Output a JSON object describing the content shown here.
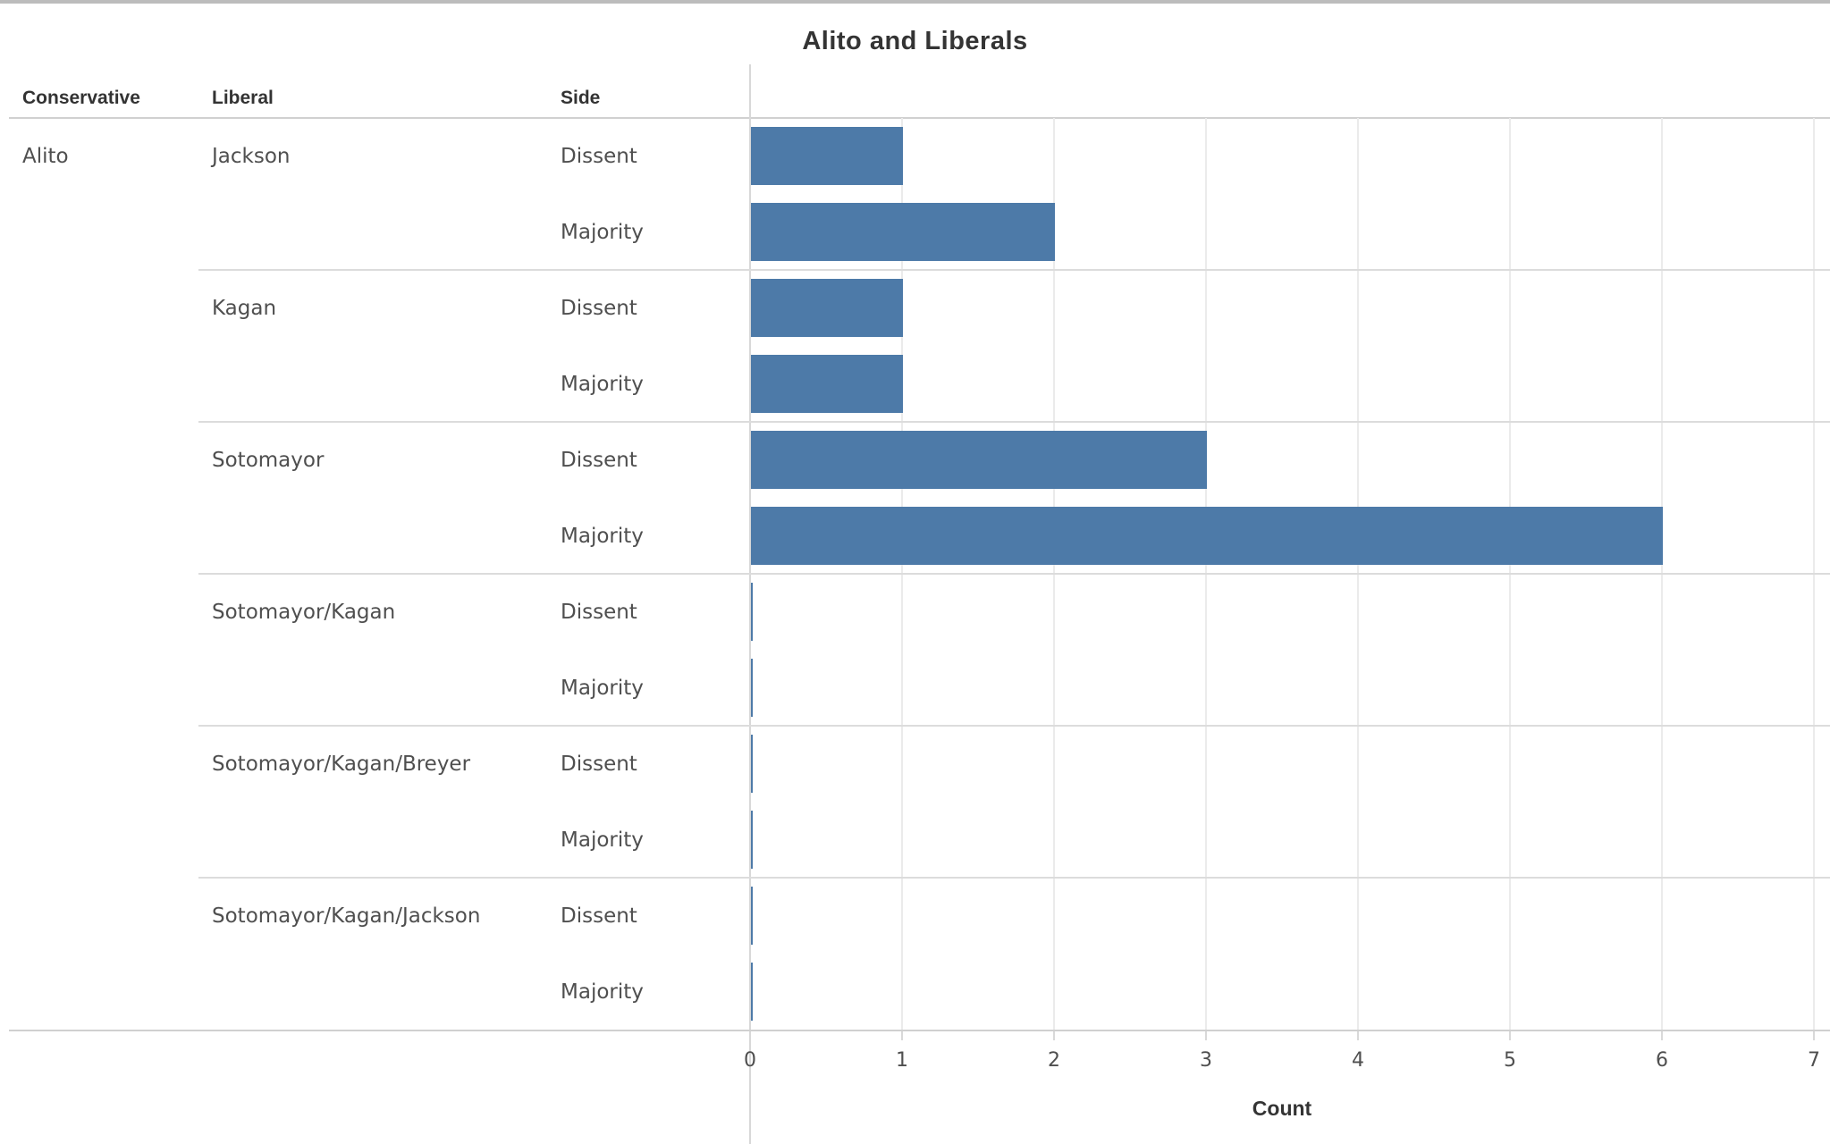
{
  "title": "Alito and Liberals",
  "chart_data": {
    "type": "bar",
    "orientation": "horizontal",
    "title": "Alito and Liberals",
    "xlabel": "Count",
    "xlim": [
      0,
      7
    ],
    "x_ticks": [
      0,
      1,
      2,
      3,
      4,
      5,
      6,
      7
    ],
    "grid": "vertical-on",
    "bar_color": "#4d7aa8",
    "row_headers": [
      "Conservative",
      "Liberal",
      "Side"
    ],
    "conservative": "Alito",
    "groups": [
      {
        "liberal": "Jackson",
        "rows": [
          {
            "side": "Dissent",
            "count": 1
          },
          {
            "side": "Majority",
            "count": 2
          }
        ]
      },
      {
        "liberal": "Kagan",
        "rows": [
          {
            "side": "Dissent",
            "count": 1
          },
          {
            "side": "Majority",
            "count": 1
          }
        ]
      },
      {
        "liberal": "Sotomayor",
        "rows": [
          {
            "side": "Dissent",
            "count": 3
          },
          {
            "side": "Majority",
            "count": 6
          }
        ]
      },
      {
        "liberal": "Sotomayor/Kagan",
        "rows": [
          {
            "side": "Dissent",
            "count": 0
          },
          {
            "side": "Majority",
            "count": 0
          }
        ]
      },
      {
        "liberal": "Sotomayor/Kagan/Breyer",
        "rows": [
          {
            "side": "Dissent",
            "count": 0
          },
          {
            "side": "Majority",
            "count": 0
          }
        ]
      },
      {
        "liberal": "Sotomayor/Kagan/Jackson",
        "rows": [
          {
            "side": "Dissent",
            "count": 0
          },
          {
            "side": "Majority",
            "count": 0
          }
        ]
      }
    ]
  }
}
